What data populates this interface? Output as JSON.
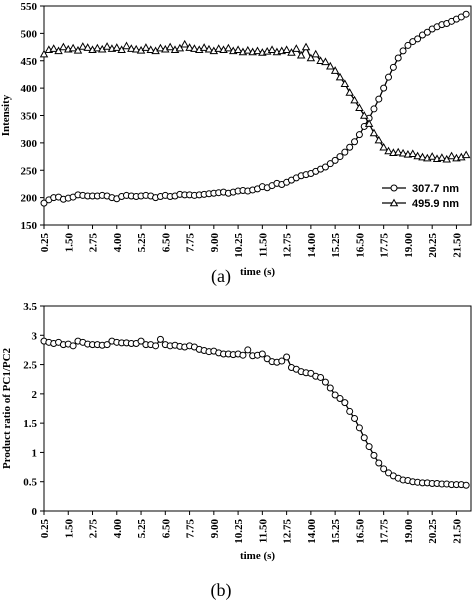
{
  "chart_data": [
    {
      "type": "line",
      "panel_label": "(a)",
      "ylabel": "Intensity",
      "xlabel": "time (s)",
      "ylim": [
        150,
        550
      ],
      "yticks": [
        150,
        200,
        250,
        300,
        350,
        400,
        450,
        500,
        550
      ],
      "x_tick_labels": [
        "0.25",
        "1.50",
        "2.75",
        "4.00",
        "5.25",
        "6.50",
        "7.75",
        "9.00",
        "10.25",
        "11.50",
        "12.75",
        "14.00",
        "15.25",
        "16.50",
        "17.75",
        "19.00",
        "20.25",
        "21.50"
      ],
      "x": [
        0.25,
        0.5,
        0.75,
        1.0,
        1.25,
        1.5,
        1.75,
        2.0,
        2.25,
        2.5,
        2.75,
        3.0,
        3.25,
        3.5,
        3.75,
        4.0,
        4.25,
        4.5,
        4.75,
        5.0,
        5.25,
        5.5,
        5.75,
        6.0,
        6.25,
        6.5,
        6.75,
        7.0,
        7.25,
        7.5,
        7.75,
        8.0,
        8.25,
        8.5,
        8.75,
        9.0,
        9.25,
        9.5,
        9.75,
        10.0,
        10.25,
        10.5,
        10.75,
        11.0,
        11.25,
        11.5,
        11.75,
        12.0,
        12.25,
        12.5,
        12.75,
        13.0,
        13.25,
        13.5,
        13.75,
        14.0,
        14.25,
        14.5,
        14.75,
        15.0,
        15.25,
        15.5,
        15.75,
        16.0,
        16.25,
        16.5,
        16.75,
        17.0,
        17.25,
        17.5,
        17.75,
        18.0,
        18.25,
        18.5,
        18.75,
        19.0,
        19.25,
        19.5,
        19.75,
        20.0,
        20.25,
        20.5,
        20.75,
        21.0,
        21.25,
        21.5,
        21.75,
        22.0
      ],
      "legend": "lower-right",
      "series": [
        {
          "name": "307.7 nm",
          "marker": "circle",
          "values": [
            190,
            196,
            200,
            201,
            197,
            199,
            201,
            205,
            204,
            203,
            203,
            203,
            204,
            203,
            200,
            198,
            202,
            204,
            203,
            202,
            203,
            204,
            203,
            200,
            202,
            204,
            202,
            203,
            206,
            205,
            205,
            204,
            205,
            206,
            207,
            208,
            209,
            210,
            208,
            210,
            212,
            213,
            212,
            214,
            216,
            220,
            218,
            222,
            226,
            224,
            228,
            232,
            236,
            240,
            242,
            244,
            248,
            252,
            256,
            262,
            268,
            275,
            283,
            292,
            302,
            315,
            330,
            345,
            362,
            380,
            400,
            420,
            438,
            455,
            468,
            478,
            485,
            490,
            497,
            502,
            508,
            512,
            516,
            518,
            522,
            526,
            530,
            535
          ]
        },
        {
          "name": "495.9 nm",
          "marker": "triangle",
          "values": [
            462,
            470,
            472,
            468,
            475,
            471,
            473,
            469,
            476,
            474,
            470,
            473,
            471,
            476,
            472,
            474,
            470,
            477,
            472,
            471,
            469,
            474,
            470,
            468,
            473,
            471,
            475,
            470,
            473,
            480,
            474,
            472,
            470,
            474,
            471,
            468,
            472,
            470,
            473,
            468,
            470,
            466,
            469,
            466,
            468,
            465,
            467,
            470,
            466,
            468,
            470,
            465,
            472,
            460,
            475,
            455,
            462,
            450,
            448,
            440,
            432,
            420,
            408,
            392,
            378,
            364,
            350,
            335,
            318,
            305,
            292,
            285,
            282,
            283,
            281,
            279,
            280,
            276,
            274,
            272,
            275,
            271,
            273,
            270,
            276,
            272,
            274,
            278
          ]
        }
      ]
    },
    {
      "type": "line",
      "panel_label": "(b)",
      "ylabel": "Product ratio of PC1/PC2",
      "xlabel": "time (s)",
      "ylim": [
        0,
        3.5
      ],
      "yticks": [
        0,
        0.5,
        1,
        1.5,
        2,
        2.5,
        3,
        3.5
      ],
      "x_tick_labels": [
        "0.25",
        "1.50",
        "2.75",
        "4.00",
        "5.25",
        "6.50",
        "7.75",
        "9.00",
        "10.25",
        "11.50",
        "12.75",
        "14.00",
        "15.25",
        "16.50",
        "17.75",
        "19.00",
        "20.25",
        "21.50"
      ],
      "x": [
        0.25,
        0.5,
        0.75,
        1.0,
        1.25,
        1.5,
        1.75,
        2.0,
        2.25,
        2.5,
        2.75,
        3.0,
        3.25,
        3.5,
        3.75,
        4.0,
        4.25,
        4.5,
        4.75,
        5.0,
        5.25,
        5.5,
        5.75,
        6.0,
        6.25,
        6.5,
        6.75,
        7.0,
        7.25,
        7.5,
        7.75,
        8.0,
        8.25,
        8.5,
        8.75,
        9.0,
        9.25,
        9.5,
        9.75,
        10.0,
        10.25,
        10.5,
        10.75,
        11.0,
        11.25,
        11.5,
        11.75,
        12.0,
        12.25,
        12.5,
        12.75,
        13.0,
        13.25,
        13.5,
        13.75,
        14.0,
        14.25,
        14.5,
        14.75,
        15.0,
        15.25,
        15.5,
        15.75,
        16.0,
        16.25,
        16.5,
        16.75,
        17.0,
        17.25,
        17.5,
        17.75,
        18.0,
        18.25,
        18.5,
        18.75,
        19.0,
        19.25,
        19.5,
        19.75,
        20.0,
        20.25,
        20.5,
        20.75,
        21.0,
        21.25,
        21.5,
        21.75,
        22.0
      ],
      "series": [
        {
          "name": "",
          "marker": "circle",
          "values": [
            2.9,
            2.88,
            2.86,
            2.88,
            2.84,
            2.85,
            2.82,
            2.9,
            2.88,
            2.85,
            2.84,
            2.84,
            2.83,
            2.84,
            2.9,
            2.88,
            2.87,
            2.87,
            2.86,
            2.86,
            2.9,
            2.84,
            2.84,
            2.82,
            2.93,
            2.84,
            2.82,
            2.83,
            2.81,
            2.8,
            2.82,
            2.8,
            2.76,
            2.74,
            2.72,
            2.73,
            2.7,
            2.68,
            2.68,
            2.67,
            2.68,
            2.66,
            2.75,
            2.65,
            2.66,
            2.68,
            2.6,
            2.55,
            2.54,
            2.56,
            2.63,
            2.45,
            2.42,
            2.38,
            2.36,
            2.35,
            2.3,
            2.28,
            2.2,
            2.1,
            1.98,
            1.92,
            1.85,
            1.7,
            1.58,
            1.42,
            1.25,
            1.1,
            0.95,
            0.82,
            0.72,
            0.65,
            0.6,
            0.56,
            0.53,
            0.52,
            0.5,
            0.49,
            0.48,
            0.48,
            0.47,
            0.47,
            0.46,
            0.46,
            0.45,
            0.45,
            0.45,
            0.44
          ]
        }
      ]
    }
  ]
}
